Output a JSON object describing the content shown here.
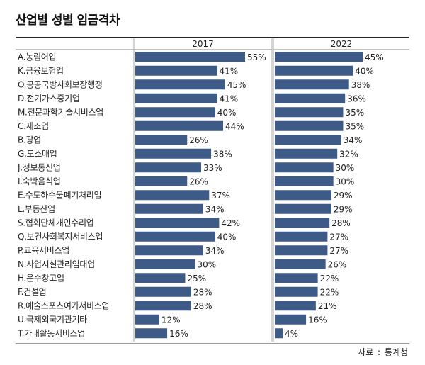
{
  "chart_data": {
    "type": "bar",
    "title": "산업별 성별 임금격차",
    "source_label": "자료",
    "source_name": "통계청",
    "value_suffix": "%",
    "bar_color": "#3e5a86",
    "categories": [
      "A.농림어업",
      "K.금융보험업",
      "O.공공국방사회보장행정",
      "D.전기가스증기업",
      "M.전문과학기술서비스업",
      "C.제조업",
      "B.광업",
      "G.도소매업",
      "J.정보통신업",
      "I.숙박음식업",
      "E.수도하수물폐기처리업",
      "L.부동산업",
      "S.협회단체개인수리업",
      "Q.보건사회복지서비스업",
      "P.교육서비스업",
      "N.사업시설관리임대업",
      "H.운수창고업",
      "F.건설업",
      "R.예술스포츠여가서비스업",
      "U.국제외국기관기타",
      "T.가내활동서비스업"
    ],
    "series": [
      {
        "name": "2017",
        "values": [
          55,
          41,
          45,
          41,
          40,
          44,
          26,
          38,
          33,
          26,
          37,
          34,
          42,
          40,
          34,
          30,
          25,
          28,
          28,
          12,
          16
        ]
      },
      {
        "name": "2022",
        "values": [
          45,
          40,
          38,
          36,
          35,
          35,
          34,
          32,
          30,
          30,
          29,
          29,
          28,
          27,
          27,
          26,
          22,
          22,
          21,
          16,
          4
        ]
      }
    ],
    "xlim": [
      0,
      60
    ]
  }
}
